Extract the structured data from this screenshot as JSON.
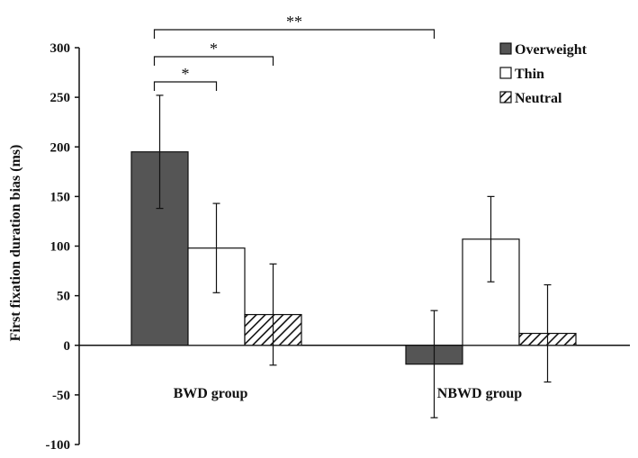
{
  "chart_data": {
    "type": "bar",
    "ylabel": "First fixation duration bias (ms)",
    "ylim": [
      -100,
      300
    ],
    "yticks": [
      300,
      250,
      200,
      150,
      100,
      50,
      0,
      -50,
      -100
    ],
    "categories": [
      "BWD group",
      "NBWD group"
    ],
    "series": [
      {
        "name": "Overweight",
        "values": [
          195,
          -19
        ],
        "errors": [
          57,
          54
        ],
        "fill": "#555555",
        "pattern": "solid"
      },
      {
        "name": "Thin",
        "values": [
          98,
          107
        ],
        "errors": [
          45,
          43
        ],
        "fill": "#ffffff",
        "pattern": "solid"
      },
      {
        "name": "Neutral",
        "values": [
          31,
          12
        ],
        "errors": [
          51,
          49
        ],
        "fill": "#ffffff",
        "pattern": "hatch"
      }
    ],
    "legend": {
      "position": "top-right"
    },
    "significance": [
      {
        "label": "*",
        "category": 0,
        "from_series": 0,
        "to_series": 1
      },
      {
        "label": "*",
        "category": 0,
        "from_series": 0,
        "to_series": 2
      },
      {
        "label": "**",
        "from_category": 0,
        "from_series": 0,
        "to_category": 1,
        "to_series": 0
      }
    ],
    "grid": false
  }
}
